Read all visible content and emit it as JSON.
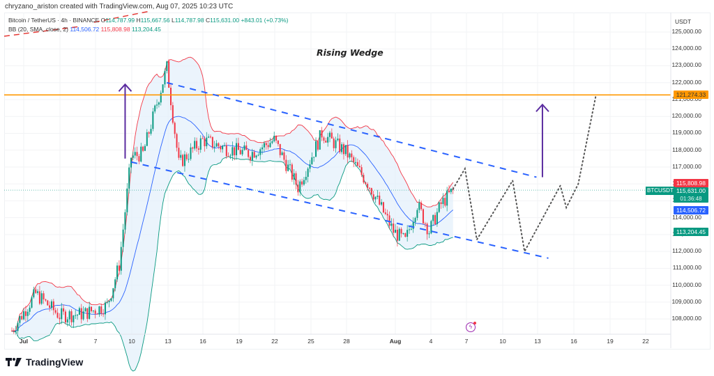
{
  "credit": "chryzano_ariston created with TradingView.com, Aug 07, 2025 10:23 UTC",
  "legend": {
    "symbol": "Bitcoin / TetherUS · 4h · BINANCE",
    "open_label": "O",
    "open": "114,787.99",
    "high_label": "H",
    "high": "115,667.56",
    "low_label": "L",
    "low": "114,787.98",
    "close_label": "C",
    "close": "115,631.00",
    "change": "+843.01 (+0.73%)",
    "bb_label": "BB (20, SMA, close, 2)",
    "bb_basis": "114,506.72",
    "bb_upper": "115,808.98",
    "bb_lower": "113,204.45"
  },
  "annotation_title": "Rising Wedge",
  "price_axis": {
    "currency": "USDT",
    "ticks": [
      "125,000.00",
      "124,000.00",
      "123,000.00",
      "122,000.00",
      "121,000.00",
      "120,000.00",
      "119,000.00",
      "118,000.00",
      "117,000.00",
      "116,000.00",
      "115,000.00",
      "114,000.00",
      "113,000.00",
      "112,000.00",
      "111,000.00",
      "110,000.00",
      "109,000.00",
      "108,000.00"
    ]
  },
  "tags": {
    "resistance": "121,274.33",
    "bb_upper": "115,808.98",
    "symbol": "BTCUSDT",
    "last_price": "115,631.00",
    "countdown": "01:36:48",
    "bb_basis": "114,506.72",
    "bb_lower": "113,204.45"
  },
  "time_axis": {
    "labels": [
      "Jul",
      "4",
      "7",
      "10",
      "13",
      "16",
      "19",
      "22",
      "25",
      "28",
      "Aug",
      "4",
      "7",
      "10",
      "13",
      "16",
      "19",
      "22"
    ]
  },
  "brand": "TradingView",
  "colors": {
    "up": "#089981",
    "down": "#f23645",
    "bb_basis": "#2962ff",
    "bb_upper": "#f23645",
    "bb_lower": "#089981",
    "bb_fill": "#e3f0fb",
    "resistance": "#ff9800",
    "channel": "#2962ff",
    "arrow": "#5b2ca0",
    "projection": "#555555"
  },
  "chart_data": {
    "type": "candlestick",
    "title": "Bitcoin / TetherUS · 4h · BINANCE — Rising Wedge",
    "xlabel": "",
    "ylabel": "USDT",
    "ylim": [
      107500,
      125500
    ],
    "x_ticks": [
      "Jul",
      "4",
      "7",
      "10",
      "13",
      "16",
      "19",
      "22",
      "25",
      "28",
      "Aug",
      "4",
      "7",
      "10",
      "13",
      "16",
      "19",
      "22"
    ],
    "last": {
      "open": 114787.99,
      "high": 115667.56,
      "low": 114787.98,
      "close": 115631.0,
      "change": 843.01,
      "change_pct": 0.73
    },
    "bollinger": {
      "period": 20,
      "type": "SMA",
      "source": "close",
      "stdev": 2,
      "basis": 114506.72,
      "upper": 115808.98,
      "lower": 113204.45
    },
    "horizontal_line": {
      "price": 121274.33,
      "color": "#ff9800"
    },
    "approx_closes_by_date": [
      {
        "date": "Jul 1",
        "price": 107300
      },
      {
        "date": "Jul 3",
        "price": 109500
      },
      {
        "date": "Jul 5",
        "price": 108200
      },
      {
        "date": "Jul 7",
        "price": 108300
      },
      {
        "date": "Jul 9",
        "price": 108800
      },
      {
        "date": "Jul 10",
        "price": 111200
      },
      {
        "date": "Jul 11",
        "price": 117600
      },
      {
        "date": "Jul 12",
        "price": 117800
      },
      {
        "date": "Jul 14",
        "price": 122900
      },
      {
        "date": "Jul 15",
        "price": 117200
      },
      {
        "date": "Jul 17",
        "price": 118600
      },
      {
        "date": "Jul 19",
        "price": 118100
      },
      {
        "date": "Jul 21",
        "price": 117800
      },
      {
        "date": "Jul 23",
        "price": 118600
      },
      {
        "date": "Jul 25",
        "price": 115800
      },
      {
        "date": "Jul 27",
        "price": 119000
      },
      {
        "date": "Jul 29",
        "price": 117900
      },
      {
        "date": "Jul 31",
        "price": 115900
      },
      {
        "date": "Aug 2",
        "price": 113200
      },
      {
        "date": "Aug 3",
        "price": 112600
      },
      {
        "date": "Aug 4",
        "price": 114800
      },
      {
        "date": "Aug 5",
        "price": 113200
      },
      {
        "date": "Aug 6",
        "price": 114800
      },
      {
        "date": "Aug 7",
        "price": 115631
      }
    ],
    "channel_lines": [
      {
        "name": "upper",
        "from": {
          "date": "Jul 14",
          "price": 122000
        },
        "to": {
          "date": "Aug 14",
          "price": 116400
        }
      },
      {
        "name": "lower",
        "from": {
          "date": "Jul 11",
          "price": 117300
        },
        "to": {
          "date": "Aug 15",
          "price": 111600
        }
      }
    ],
    "projection_path": [
      {
        "date": "Aug 7",
        "price": 115700
      },
      {
        "date": "Aug 8",
        "price": 116900
      },
      {
        "date": "Aug 9",
        "price": 112700
      },
      {
        "date": "Aug 12",
        "price": 116200
      },
      {
        "date": "Aug 13",
        "price": 112000
      },
      {
        "date": "Aug 16",
        "price": 115900
      },
      {
        "date": "Aug 16.5",
        "price": 114600
      },
      {
        "date": "Aug 17.5",
        "price": 116000
      },
      {
        "date": "Aug 19",
        "price": 121300
      }
    ],
    "arrows": [
      {
        "date": "Jul 10.5",
        "from": 117500,
        "to": 121900
      },
      {
        "date": "Aug 14.5",
        "from": 116400,
        "to": 120700
      }
    ]
  }
}
